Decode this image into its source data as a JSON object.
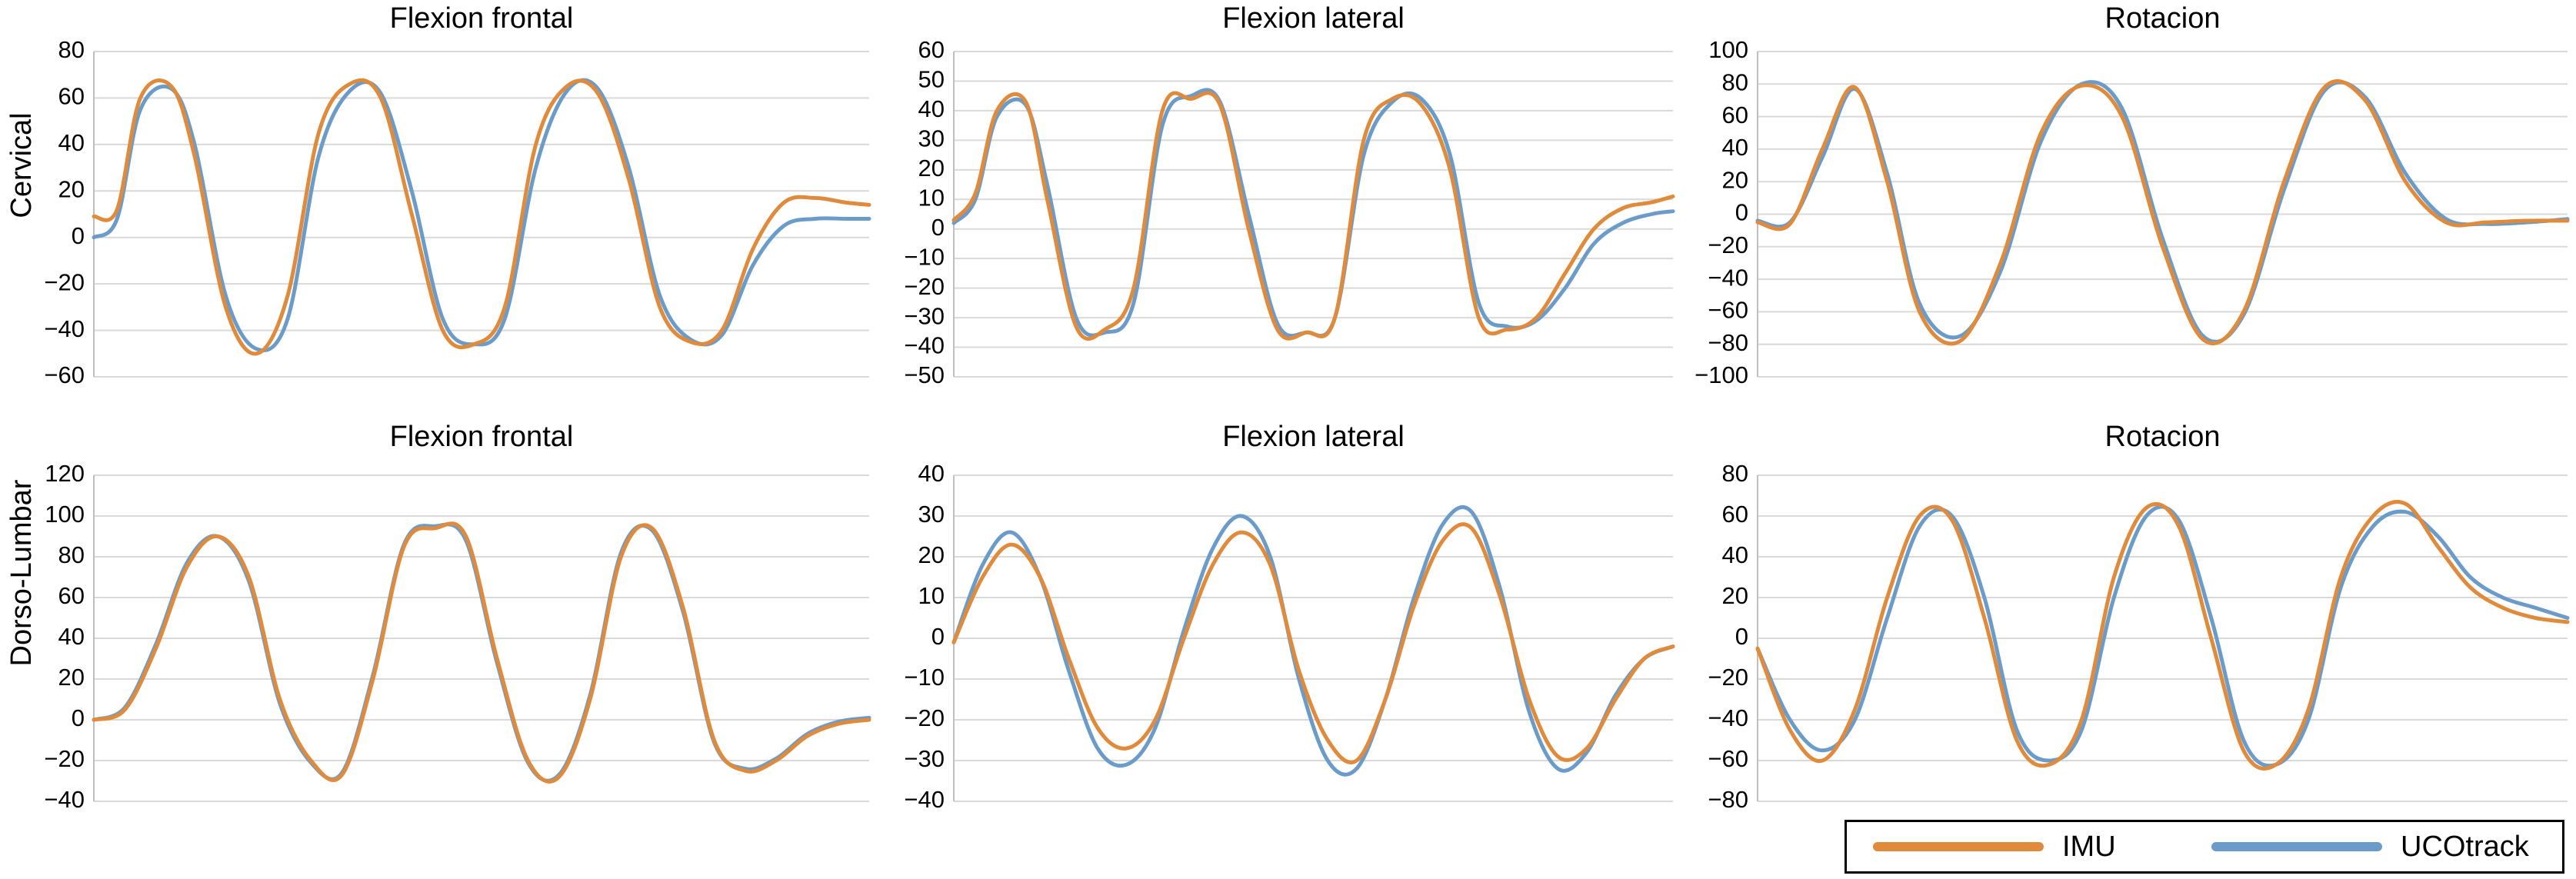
{
  "row_labels": [
    "Cervical",
    "Dorso-Lumbar"
  ],
  "legend": [
    {
      "label": "IMU",
      "color": "#E08A3C"
    },
    {
      "label": "UCOtrack",
      "color": "#6B9CC9"
    }
  ],
  "colors": {
    "imu": "#E08A3C",
    "ucotrack": "#6B9CC9",
    "grid": "#D9D9D9",
    "axis": "#BFBFBF"
  },
  "chart_data": [
    {
      "type": "line",
      "row": "Cervical",
      "title": "Flexion frontal",
      "ylim": [
        -60,
        80
      ],
      "yticks": [
        -60,
        -40,
        -20,
        0,
        20,
        40,
        60,
        80
      ],
      "grid": true,
      "x": [
        0,
        0.03,
        0.06,
        0.1,
        0.13,
        0.17,
        0.21,
        0.25,
        0.29,
        0.33,
        0.37,
        0.41,
        0.45,
        0.49,
        0.53,
        0.57,
        0.61,
        0.65,
        0.69,
        0.73,
        0.77,
        0.81,
        0.85,
        0.89,
        0.93,
        0.97,
        1.0
      ],
      "series": [
        {
          "name": "IMU",
          "values": [
            9,
            12,
            60,
            65,
            35,
            -30,
            -50,
            -25,
            45,
            66,
            60,
            10,
            -40,
            -46,
            -30,
            40,
            65,
            62,
            25,
            -30,
            -45,
            -40,
            -5,
            15,
            17,
            15,
            14
          ]
        },
        {
          "name": "UCOtrack",
          "values": [
            0,
            8,
            55,
            64,
            40,
            -25,
            -48,
            -35,
            35,
            63,
            62,
            20,
            -35,
            -46,
            -35,
            30,
            63,
            64,
            30,
            -25,
            -44,
            -42,
            -12,
            5,
            8,
            8,
            8
          ]
        }
      ]
    },
    {
      "type": "line",
      "row": "Cervical",
      "title": "Flexion lateral",
      "ylim": [
        -50,
        60
      ],
      "yticks": [
        -50,
        -40,
        -30,
        -20,
        -10,
        0,
        10,
        20,
        30,
        40,
        50,
        60
      ],
      "grid": true,
      "x": [
        0,
        0.03,
        0.06,
        0.1,
        0.13,
        0.17,
        0.21,
        0.25,
        0.29,
        0.33,
        0.37,
        0.41,
        0.45,
        0.49,
        0.53,
        0.57,
        0.61,
        0.65,
        0.69,
        0.73,
        0.77,
        0.81,
        0.85,
        0.89,
        0.93,
        0.97,
        1.0
      ],
      "series": [
        {
          "name": "IMU",
          "values": [
            3,
            12,
            40,
            43,
            10,
            -33,
            -34,
            -20,
            40,
            44,
            42,
            0,
            -34,
            -35,
            -30,
            30,
            44,
            42,
            20,
            -30,
            -34,
            -30,
            -15,
            0,
            7,
            9,
            11
          ]
        },
        {
          "name": "UCOtrack",
          "values": [
            2,
            10,
            38,
            42,
            15,
            -30,
            -35,
            -25,
            35,
            45,
            43,
            5,
            -32,
            -35,
            -30,
            25,
            43,
            44,
            25,
            -25,
            -33,
            -31,
            -20,
            -5,
            2,
            5,
            6
          ]
        }
      ]
    },
    {
      "type": "line",
      "row": "Cervical",
      "title": "Rotacion",
      "ylim": [
        -100,
        100
      ],
      "yticks": [
        -100,
        -80,
        -60,
        -40,
        -20,
        0,
        20,
        40,
        60,
        80,
        100
      ],
      "grid": true,
      "x": [
        0,
        0.04,
        0.08,
        0.12,
        0.16,
        0.2,
        0.25,
        0.3,
        0.35,
        0.4,
        0.45,
        0.5,
        0.55,
        0.6,
        0.65,
        0.7,
        0.75,
        0.8,
        0.85,
        0.9,
        0.95,
        1.0
      ],
      "series": [
        {
          "name": "IMU",
          "values": [
            -5,
            -6,
            40,
            78,
            20,
            -60,
            -78,
            -30,
            50,
            79,
            60,
            -20,
            -77,
            -60,
            20,
            78,
            70,
            20,
            -5,
            -5,
            -4,
            -4
          ]
        },
        {
          "name": "UCOtrack",
          "values": [
            -4,
            -5,
            35,
            77,
            25,
            -55,
            -75,
            -35,
            45,
            80,
            65,
            -15,
            -75,
            -62,
            15,
            76,
            72,
            25,
            -3,
            -6,
            -5,
            -3
          ]
        }
      ]
    },
    {
      "type": "line",
      "row": "Dorso-Lumbar",
      "title": "Flexion frontal",
      "ylim": [
        -40,
        120
      ],
      "yticks": [
        -40,
        -20,
        0,
        20,
        40,
        60,
        80,
        100,
        120
      ],
      "grid": true,
      "x": [
        0,
        0.04,
        0.08,
        0.12,
        0.16,
        0.2,
        0.24,
        0.28,
        0.32,
        0.36,
        0.4,
        0.44,
        0.48,
        0.52,
        0.56,
        0.6,
        0.64,
        0.68,
        0.72,
        0.76,
        0.8,
        0.84,
        0.88,
        0.92,
        0.96,
        1.0
      ],
      "series": [
        {
          "name": "IMU",
          "values": [
            0,
            5,
            35,
            75,
            90,
            70,
            10,
            -20,
            -27,
            20,
            85,
            94,
            90,
            30,
            -20,
            -28,
            10,
            80,
            94,
            55,
            -10,
            -25,
            -20,
            -8,
            -2,
            0
          ]
        },
        {
          "name": "UCOtrack",
          "values": [
            0,
            6,
            37,
            77,
            90,
            68,
            8,
            -21,
            -26,
            22,
            86,
            95,
            88,
            28,
            -21,
            -27,
            12,
            82,
            93,
            53,
            -11,
            -24,
            -19,
            -7,
            -1,
            1
          ]
        }
      ]
    },
    {
      "type": "line",
      "row": "Dorso-Lumbar",
      "title": "Flexion lateral",
      "ylim": [
        -40,
        40
      ],
      "yticks": [
        -40,
        -30,
        -20,
        -10,
        0,
        10,
        20,
        30,
        40
      ],
      "grid": true,
      "x": [
        0,
        0.04,
        0.08,
        0.12,
        0.16,
        0.2,
        0.24,
        0.28,
        0.32,
        0.36,
        0.4,
        0.44,
        0.48,
        0.52,
        0.56,
        0.6,
        0.64,
        0.68,
        0.72,
        0.76,
        0.8,
        0.84,
        0.88,
        0.92,
        0.96,
        1.0
      ],
      "series": [
        {
          "name": "IMU",
          "values": [
            -1,
            15,
            23,
            15,
            -5,
            -22,
            -27,
            -20,
            0,
            18,
            26,
            18,
            -8,
            -25,
            -30,
            -15,
            8,
            24,
            27,
            10,
            -15,
            -29,
            -27,
            -15,
            -5,
            -2
          ]
        },
        {
          "name": "UCOtrack",
          "values": [
            -1,
            18,
            26,
            15,
            -8,
            -27,
            -31,
            -22,
            2,
            22,
            30,
            20,
            -10,
            -30,
            -32,
            -15,
            10,
            28,
            31,
            12,
            -18,
            -32,
            -28,
            -14,
            -5,
            -2
          ]
        }
      ]
    },
    {
      "type": "line",
      "row": "Dorso-Lumbar",
      "title": "Rotacion",
      "ylim": [
        -80,
        80
      ],
      "yticks": [
        -80,
        -60,
        -40,
        -20,
        0,
        20,
        40,
        60,
        80
      ],
      "grid": true,
      "x": [
        0,
        0.04,
        0.08,
        0.12,
        0.16,
        0.2,
        0.24,
        0.28,
        0.32,
        0.36,
        0.4,
        0.44,
        0.48,
        0.52,
        0.56,
        0.6,
        0.64,
        0.68,
        0.72,
        0.76,
        0.8,
        0.84,
        0.88,
        0.92,
        0.96,
        1.0
      ],
      "series": [
        {
          "name": "IMU",
          "values": [
            -5,
            -45,
            -60,
            -35,
            20,
            60,
            58,
            10,
            -50,
            -62,
            -40,
            30,
            64,
            55,
            0,
            -55,
            -62,
            -35,
            30,
            60,
            66,
            45,
            25,
            15,
            10,
            8
          ]
        },
        {
          "name": "UCOtrack",
          "values": [
            -5,
            -40,
            -55,
            -40,
            10,
            55,
            60,
            20,
            -45,
            -60,
            -45,
            20,
            60,
            58,
            10,
            -50,
            -62,
            -40,
            25,
            55,
            62,
            50,
            30,
            20,
            15,
            10
          ]
        }
      ]
    }
  ]
}
